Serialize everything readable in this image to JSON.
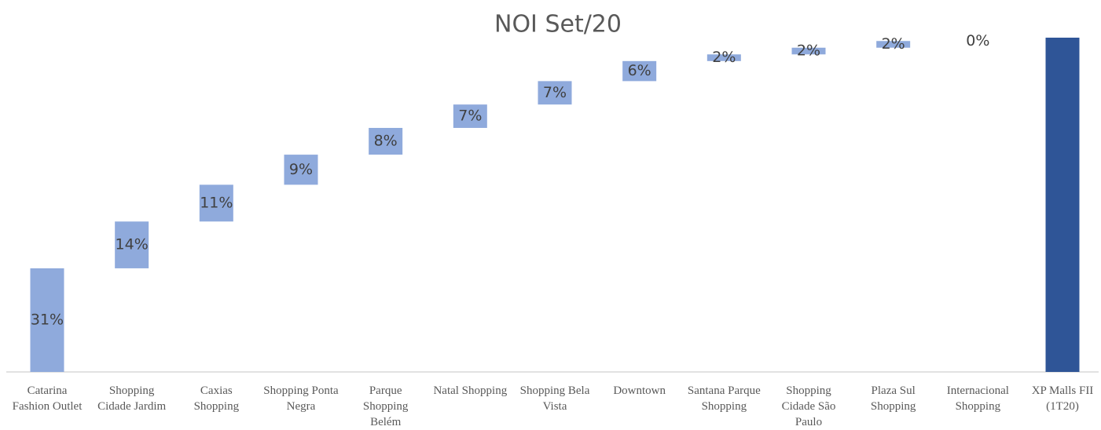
{
  "chart_data": {
    "type": "waterfall",
    "title": "NOI Set/20",
    "categories": [
      "Catarina Fashion Outlet",
      "Shopping Cidade Jardim",
      "Caxias Shopping",
      "Shopping Ponta Negra",
      "Parque Shopping Belém",
      "Natal Shopping",
      "Shopping Bela Vista",
      "Downtown",
      "Santana Parque Shopping",
      "Shopping Cidade São Paulo",
      "Plaza Sul Shopping",
      "Internacional Shopping"
    ],
    "values": [
      31,
      14,
      11,
      9,
      8,
      7,
      7,
      6,
      2,
      2,
      2,
      0
    ],
    "value_labels": [
      "31%",
      "14%",
      "11%",
      "9%",
      "8%",
      "7%",
      "7%",
      "6%",
      "2%",
      "2%",
      "2%",
      "0%"
    ],
    "color": "#8faadc",
    "total": {
      "label": "XP Malls FII (1T20)",
      "value": 100,
      "color": "#2f5597"
    }
  }
}
